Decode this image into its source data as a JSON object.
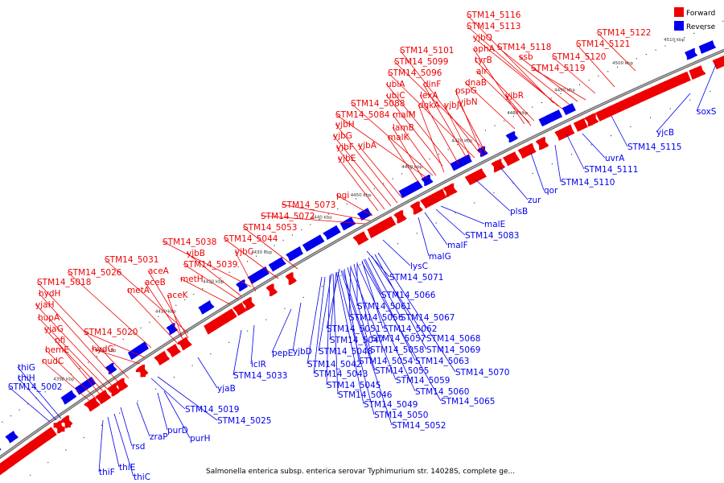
{
  "caption": "Salmonella enterica subsp. enterica serovar Typhimurium str. 14028S, complete ge...",
  "legend": [
    {
      "label": "Forward",
      "color": "#ee0000"
    },
    {
      "label": "Reverse",
      "color": "#0000ee"
    }
  ],
  "colors": {
    "forward": "#ee0000",
    "reverse": "#0000ee",
    "backbone": "#888888"
  },
  "ticks": [
    "4390 kbp",
    "4400 kbp",
    "4410 kbp",
    "4420 kbp",
    "4430 kbp",
    "4440 kbp",
    "4450 kbp",
    "4460 kbp",
    "4470 kbp",
    "4480 kbp",
    "4490 kbp",
    "4500 kbp",
    "4510 kbp"
  ],
  "forward_labels": [
    "STM14_5116",
    "STM14_5113",
    "yjbQ",
    "aphA",
    "STM14_5118",
    "ssb",
    "tyrB",
    "STM14_5122",
    "STM14_5121",
    "STM14_5120",
    "STM14_5119",
    "alr",
    "dnaB",
    "yjbR",
    "STM14_5101",
    "STM14_5099",
    "STM14_5096",
    "ubiA",
    "ubiC",
    "dgkA",
    "dinF",
    "lexA",
    "yjbJ",
    "pspG",
    "yjbN",
    "STM14_5088",
    "STM14_5084",
    "malM",
    "lamB",
    "malK",
    "yjbH",
    "yjbG",
    "yjbF",
    "yjbE",
    "yjbA",
    "pgi",
    "STM14_5073",
    "STM14_5072",
    "STM14_5053",
    "STM14_5044",
    "STM14_5038",
    "yjbB",
    "STM14_5039",
    "yjbC",
    "metH",
    "STM14_5031",
    "aceA",
    "aceB",
    "metA",
    "aceK",
    "STM14_5026",
    "STM14_5018",
    "hydH",
    "yjaH",
    "hupA",
    "yjaG",
    "nfi",
    "hemE",
    "nudC",
    "STM14_5020",
    "hydG"
  ],
  "reverse_labels": [
    "soxS",
    "yjcB",
    "STM14_5115",
    "uvrA",
    "STM14_5111",
    "STM14_5110",
    "qor",
    "zur",
    "plsB",
    "malE",
    "STM14_5083",
    "malF",
    "malG",
    "lysC",
    "STM14_5071",
    "STM14_5066",
    "STM14_5061",
    "STM14_5067",
    "STM14_5056",
    "STM14_5051",
    "STM14_5062",
    "STM14_5047",
    "STM14_5057",
    "STM14_5068",
    "STM14_5048",
    "STM14_5058",
    "STM14_5069",
    "STM14_5042",
    "STM14_5054",
    "STM14_5063",
    "STM14_5043",
    "STM14_5055",
    "STM14_5070",
    "STM14_5045",
    "STM14_5059",
    "STM14_5046",
    "STM14_5060",
    "STM14_5049",
    "STM14_5065",
    "STM14_5050",
    "STM14_5052",
    "pepE",
    "yjbD",
    "iclR",
    "STM14_5033",
    "yjaB",
    "STM14_5019",
    "STM14_5025",
    "purD",
    "purH",
    "zraP",
    "rsd",
    "thiF",
    "thiE",
    "thiC",
    "thiG",
    "thiH",
    "STM14_5002"
  ]
}
